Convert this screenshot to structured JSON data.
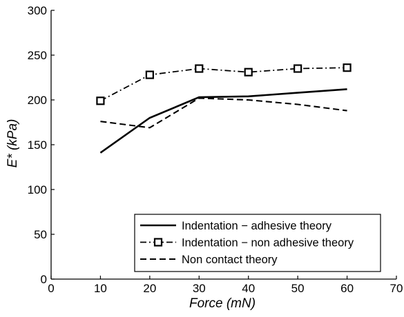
{
  "chart_data": {
    "type": "line",
    "xlabel": "Force (mN)",
    "ylabel": "E* (kPa)",
    "xlim": [
      0,
      70
    ],
    "ylim": [
      0,
      300
    ],
    "xticks": [
      0,
      10,
      20,
      30,
      40,
      50,
      60,
      70
    ],
    "yticks": [
      0,
      50,
      100,
      150,
      200,
      250,
      300
    ],
    "grid": false,
    "legend_position": "bottom-right",
    "series": [
      {
        "name": "Indentation − adhesive theory",
        "line_style": "solid",
        "marker": "none",
        "color": "#000000",
        "x": [
          10,
          20,
          30,
          40,
          50,
          60
        ],
        "y": [
          141,
          180,
          203,
          204,
          208,
          212
        ]
      },
      {
        "name": "Indentation − non adhesive theory",
        "line_style": "dash-dot",
        "marker": "square",
        "color": "#000000",
        "x": [
          10,
          20,
          30,
          40,
          50,
          60
        ],
        "y": [
          199,
          228,
          235,
          231,
          235,
          236
        ]
      },
      {
        "name": "Non contact theory",
        "line_style": "dashed",
        "marker": "none",
        "color": "#000000",
        "x": [
          10,
          20,
          30,
          40,
          50,
          60
        ],
        "y": [
          176,
          169,
          202,
          200,
          195,
          188
        ]
      }
    ]
  }
}
